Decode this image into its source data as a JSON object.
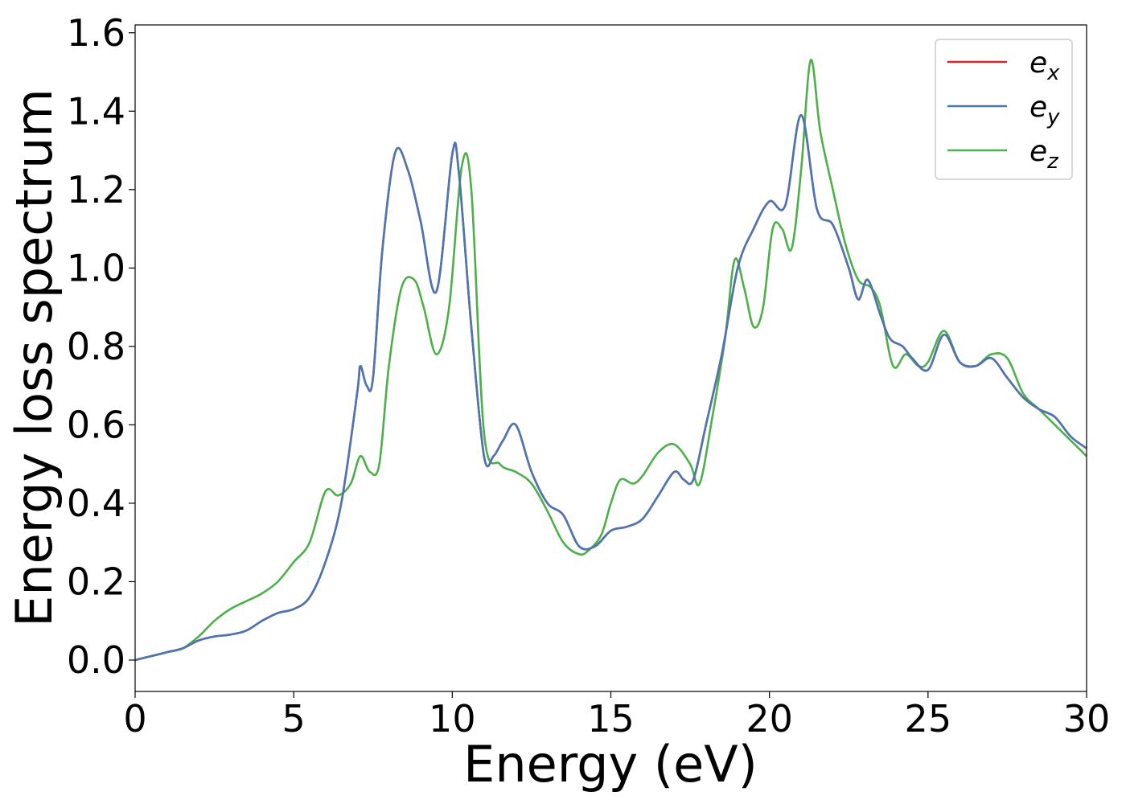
{
  "chart_data": {
    "type": "line",
    "xlabel": "Energy (eV)",
    "ylabel": "Energy loss spectrum",
    "xlim": [
      0,
      30
    ],
    "ylim": [
      -0.08,
      1.62
    ],
    "x_ticks": [
      "0",
      "5",
      "10",
      "15",
      "20",
      "25",
      "30"
    ],
    "y_ticks": [
      "0.0",
      "0.2",
      "0.4",
      "0.6",
      "0.8",
      "1.0",
      "1.2",
      "1.4",
      "1.6"
    ],
    "grid": false,
    "legend_position": "top-right",
    "series": [
      {
        "name": "e_x",
        "label_base": "e",
        "label_sub": "x",
        "color": "#d62728",
        "x": [
          0,
          0.5,
          1,
          1.5,
          2,
          2.5,
          3,
          3.5,
          4,
          4.5,
          5,
          5.5,
          6,
          6.5,
          7,
          7.1,
          7.3,
          7.5,
          7.8,
          8.2,
          8.6,
          9,
          9.5,
          10,
          10.2,
          10.6,
          11,
          11.3,
          11.6,
          12,
          12.5,
          13,
          13.5,
          14,
          14.5,
          15,
          15.5,
          16,
          16.5,
          17,
          17.3,
          17.6,
          18,
          18.5,
          19,
          19.5,
          20,
          20.5,
          21,
          21.5,
          22,
          22.5,
          22.8,
          23.1,
          23.5,
          23.8,
          24.2,
          24.5,
          25,
          25.5,
          26,
          26.5,
          27,
          27.5,
          28,
          28.5,
          29,
          29.5,
          30
        ],
        "y": [
          0.0,
          0.01,
          0.02,
          0.03,
          0.05,
          0.06,
          0.065,
          0.075,
          0.1,
          0.12,
          0.13,
          0.16,
          0.25,
          0.4,
          0.68,
          0.75,
          0.7,
          0.72,
          1.05,
          1.295,
          1.25,
          1.12,
          0.94,
          1.29,
          1.25,
          0.85,
          0.52,
          0.52,
          0.56,
          0.6,
          0.48,
          0.4,
          0.37,
          0.29,
          0.29,
          0.33,
          0.34,
          0.36,
          0.42,
          0.48,
          0.46,
          0.46,
          0.6,
          0.78,
          1.0,
          1.1,
          1.17,
          1.16,
          1.39,
          1.15,
          1.11,
          1.0,
          0.92,
          0.97,
          0.88,
          0.82,
          0.8,
          0.77,
          0.74,
          0.83,
          0.76,
          0.75,
          0.77,
          0.72,
          0.67,
          0.64,
          0.62,
          0.57,
          0.54
        ]
      },
      {
        "name": "e_y",
        "label_base": "e",
        "label_sub": "y",
        "color": "#4a77b4",
        "x": [
          0,
          0.5,
          1,
          1.5,
          2,
          2.5,
          3,
          3.5,
          4,
          4.5,
          5,
          5.5,
          6,
          6.5,
          7,
          7.1,
          7.3,
          7.5,
          7.8,
          8.2,
          8.6,
          9,
          9.5,
          10,
          10.2,
          10.6,
          11,
          11.3,
          11.6,
          12,
          12.5,
          13,
          13.5,
          14,
          14.5,
          15,
          15.5,
          16,
          16.5,
          17,
          17.3,
          17.6,
          18,
          18.5,
          19,
          19.5,
          20,
          20.5,
          21,
          21.5,
          22,
          22.5,
          22.8,
          23.1,
          23.5,
          23.8,
          24.2,
          24.5,
          25,
          25.5,
          26,
          26.5,
          27,
          27.5,
          28,
          28.5,
          29,
          29.5,
          30
        ],
        "y": [
          0.0,
          0.01,
          0.02,
          0.03,
          0.05,
          0.06,
          0.065,
          0.075,
          0.1,
          0.12,
          0.13,
          0.16,
          0.25,
          0.4,
          0.68,
          0.75,
          0.7,
          0.72,
          1.05,
          1.295,
          1.25,
          1.12,
          0.94,
          1.29,
          1.25,
          0.85,
          0.52,
          0.52,
          0.56,
          0.6,
          0.48,
          0.4,
          0.37,
          0.29,
          0.29,
          0.33,
          0.34,
          0.36,
          0.42,
          0.48,
          0.46,
          0.46,
          0.6,
          0.78,
          1.0,
          1.1,
          1.17,
          1.16,
          1.39,
          1.15,
          1.11,
          1.0,
          0.92,
          0.97,
          0.88,
          0.82,
          0.8,
          0.77,
          0.74,
          0.83,
          0.76,
          0.75,
          0.77,
          0.72,
          0.67,
          0.64,
          0.62,
          0.57,
          0.54
        ]
      },
      {
        "name": "e_z",
        "label_base": "e",
        "label_sub": "z",
        "color": "#4daf4a",
        "x": [
          0,
          0.5,
          1,
          1.5,
          2,
          2.5,
          3,
          3.5,
          4,
          4.5,
          5,
          5.5,
          6,
          6.4,
          6.8,
          7.1,
          7.4,
          7.7,
          8,
          8.4,
          8.8,
          9.1,
          9.5,
          9.9,
          10.3,
          10.6,
          11,
          11.5,
          12,
          12.5,
          13,
          13.5,
          14,
          14.3,
          14.7,
          15,
          15.3,
          15.7,
          16,
          16.5,
          17,
          17.5,
          17.8,
          18.2,
          18.6,
          18.9,
          19.2,
          19.5,
          19.8,
          20.1,
          20.4,
          20.7,
          21,
          21.3,
          21.6,
          22,
          22.4,
          22.8,
          23.2,
          23.5,
          23.9,
          24.3,
          24.7,
          25,
          25.5,
          26,
          26.5,
          27,
          27.5,
          28,
          28.5,
          29,
          29.5,
          30
        ],
        "y": [
          0.0,
          0.01,
          0.02,
          0.03,
          0.06,
          0.1,
          0.13,
          0.15,
          0.17,
          0.2,
          0.25,
          0.3,
          0.43,
          0.42,
          0.45,
          0.52,
          0.48,
          0.5,
          0.75,
          0.95,
          0.97,
          0.9,
          0.78,
          0.9,
          1.26,
          1.2,
          0.58,
          0.5,
          0.48,
          0.45,
          0.38,
          0.3,
          0.27,
          0.28,
          0.32,
          0.4,
          0.46,
          0.45,
          0.47,
          0.53,
          0.55,
          0.5,
          0.45,
          0.62,
          0.82,
          1.02,
          0.95,
          0.85,
          0.9,
          1.1,
          1.1,
          1.05,
          1.25,
          1.53,
          1.35,
          1.2,
          1.06,
          0.97,
          0.95,
          0.9,
          0.75,
          0.78,
          0.75,
          0.76,
          0.84,
          0.76,
          0.75,
          0.78,
          0.77,
          0.68,
          0.64,
          0.6,
          0.56,
          0.52
        ]
      }
    ]
  }
}
